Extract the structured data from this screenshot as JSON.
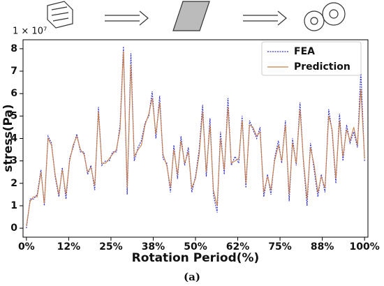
{
  "chart_data": {
    "type": "line",
    "offset_text": "1 × 10⁷",
    "xlabel": "Rotation Period(%)",
    "ylabel": "stress(Pa)",
    "caption": "(a)",
    "legend": "upper right",
    "xlim": [
      -1,
      101
    ],
    "ylim": [
      -0.4,
      8.4
    ],
    "xticks": [
      {
        "value": 0,
        "label": "0%"
      },
      {
        "value": 12.5,
        "label": "12%"
      },
      {
        "value": 25,
        "label": "25%"
      },
      {
        "value": 37.5,
        "label": "38%"
      },
      {
        "value": 50,
        "label": "50%"
      },
      {
        "value": 62.5,
        "label": "62%"
      },
      {
        "value": 75,
        "label": "75%"
      },
      {
        "value": 87.5,
        "label": "88%"
      },
      {
        "value": 100,
        "label": "100%"
      }
    ],
    "yticks": [
      0,
      1,
      2,
      3,
      4,
      5,
      6,
      7,
      8
    ],
    "x": [
      0,
      1.1,
      2.1,
      3.2,
      4.3,
      5.3,
      6.4,
      7.4,
      8.5,
      9.6,
      10.6,
      11.7,
      12.8,
      13.8,
      14.9,
      16.0,
      17.0,
      18.1,
      19.1,
      20.2,
      21.3,
      22.3,
      23.4,
      24.5,
      25.5,
      26.6,
      27.7,
      28.7,
      29.8,
      30.9,
      31.9,
      33.0,
      34.0,
      35.1,
      36.2,
      37.2,
      38.3,
      39.4,
      40.4,
      41.5,
      42.6,
      43.6,
      44.7,
      45.7,
      46.8,
      47.9,
      48.9,
      50.0,
      51.1,
      52.1,
      53.2,
      54.3,
      55.3,
      56.4,
      57.4,
      58.5,
      59.6,
      60.6,
      61.7,
      62.8,
      63.8,
      64.9,
      66.0,
      67.0,
      68.1,
      69.1,
      70.2,
      71.3,
      72.3,
      73.4,
      74.5,
      75.5,
      76.6,
      77.7,
      78.7,
      79.8,
      80.9,
      81.9,
      83.0,
      84.0,
      85.1,
      86.2,
      87.2,
      88.3,
      89.4,
      90.4,
      91.5,
      92.6,
      93.6,
      94.7,
      95.7,
      96.8,
      97.9,
      98.9,
      100.0
    ],
    "series": [
      {
        "name": "FEA",
        "color": "#3333cc",
        "dash": "dotted",
        "values": [
          0.0,
          1.3,
          1.3,
          1.5,
          2.6,
          1.0,
          4.1,
          3.8,
          2.3,
          1.4,
          2.7,
          1.3,
          3.1,
          3.6,
          4.2,
          3.4,
          3.4,
          2.4,
          2.8,
          1.7,
          5.4,
          2.8,
          3.0,
          3.0,
          3.4,
          3.4,
          4.6,
          8.1,
          1.5,
          7.8,
          3.0,
          3.6,
          3.9,
          4.7,
          5.0,
          6.1,
          4.0,
          5.9,
          3.1,
          2.9,
          1.6,
          3.7,
          2.2,
          4.1,
          2.8,
          3.6,
          1.6,
          2.3,
          3.5,
          5.5,
          2.3,
          4.9,
          1.5,
          0.7,
          4.3,
          2.4,
          5.8,
          2.8,
          3.2,
          2.9,
          5.0,
          1.8,
          4.8,
          4.4,
          4.0,
          4.5,
          1.4,
          2.4,
          1.5,
          3.1,
          3.9,
          2.9,
          4.8,
          1.2,
          4.0,
          2.8,
          5.6,
          3.0,
          1.0,
          3.8,
          2.6,
          1.4,
          2.4,
          1.6,
          5.3,
          4.3,
          2.0,
          5.1,
          3.0,
          4.6,
          3.8,
          4.3,
          3.6,
          7.0,
          3.0
        ]
      },
      {
        "name": "Prediction",
        "color": "#c8804f",
        "dash": "solid",
        "values": [
          0.1,
          1.2,
          1.4,
          1.4,
          2.5,
          1.1,
          4.0,
          3.7,
          2.4,
          1.5,
          2.6,
          1.5,
          3.0,
          3.7,
          4.1,
          3.5,
          3.3,
          2.5,
          2.7,
          1.9,
          5.2,
          2.9,
          2.9,
          3.1,
          3.3,
          3.5,
          4.4,
          7.9,
          1.8,
          7.3,
          3.2,
          3.5,
          3.7,
          4.6,
          5.1,
          5.8,
          4.2,
          5.6,
          3.3,
          2.8,
          1.8,
          3.5,
          2.4,
          3.9,
          2.9,
          3.4,
          1.8,
          2.2,
          3.3,
          5.2,
          2.5,
          4.6,
          1.7,
          1.0,
          4.0,
          2.6,
          5.4,
          2.9,
          3.0,
          3.1,
          4.8,
          2.0,
          4.6,
          4.5,
          4.1,
          4.3,
          1.6,
          2.3,
          1.7,
          3.0,
          3.7,
          3.0,
          4.6,
          1.5,
          3.8,
          2.9,
          5.3,
          3.1,
          1.3,
          3.6,
          2.8,
          1.6,
          2.3,
          1.8,
          5.0,
          4.4,
          2.2,
          4.8,
          3.2,
          4.4,
          3.9,
          4.5,
          3.7,
          6.2,
          3.1
        ]
      }
    ]
  }
}
